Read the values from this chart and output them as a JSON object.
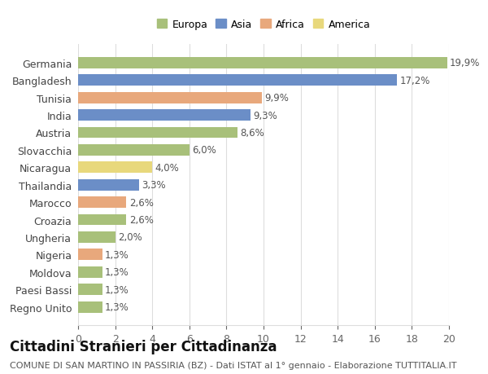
{
  "categories": [
    "Germania",
    "Bangladesh",
    "Tunisia",
    "India",
    "Austria",
    "Slovacchia",
    "Nicaragua",
    "Thailandia",
    "Marocco",
    "Croazia",
    "Ungheria",
    "Nigeria",
    "Moldova",
    "Paesi Bassi",
    "Regno Unito"
  ],
  "values": [
    19.9,
    17.2,
    9.9,
    9.3,
    8.6,
    6.0,
    4.0,
    3.3,
    2.6,
    2.6,
    2.0,
    1.3,
    1.3,
    1.3,
    1.3
  ],
  "continents": [
    "Europa",
    "Asia",
    "Africa",
    "Asia",
    "Europa",
    "Europa",
    "America",
    "Asia",
    "Africa",
    "Europa",
    "Europa",
    "Africa",
    "Europa",
    "Europa",
    "Europa"
  ],
  "continent_colors": {
    "Europa": "#a8c07a",
    "Asia": "#6b8ec7",
    "Africa": "#e8a87c",
    "America": "#e8d87c"
  },
  "legend_order": [
    "Europa",
    "Asia",
    "Africa",
    "America"
  ],
  "title": "Cittadini Stranieri per Cittadinanza",
  "subtitle": "COMUNE DI SAN MARTINO IN PASSIRIA (BZ) - Dati ISTAT al 1° gennaio - Elaborazione TUTTITALIA.IT",
  "xlim": [
    0,
    20
  ],
  "xticks": [
    0,
    2,
    4,
    6,
    8,
    10,
    12,
    14,
    16,
    18,
    20
  ],
  "background_color": "#ffffff",
  "grid_color": "#dddddd",
  "bar_label_fontsize": 8.5,
  "category_fontsize": 9,
  "title_fontsize": 12,
  "subtitle_fontsize": 8
}
